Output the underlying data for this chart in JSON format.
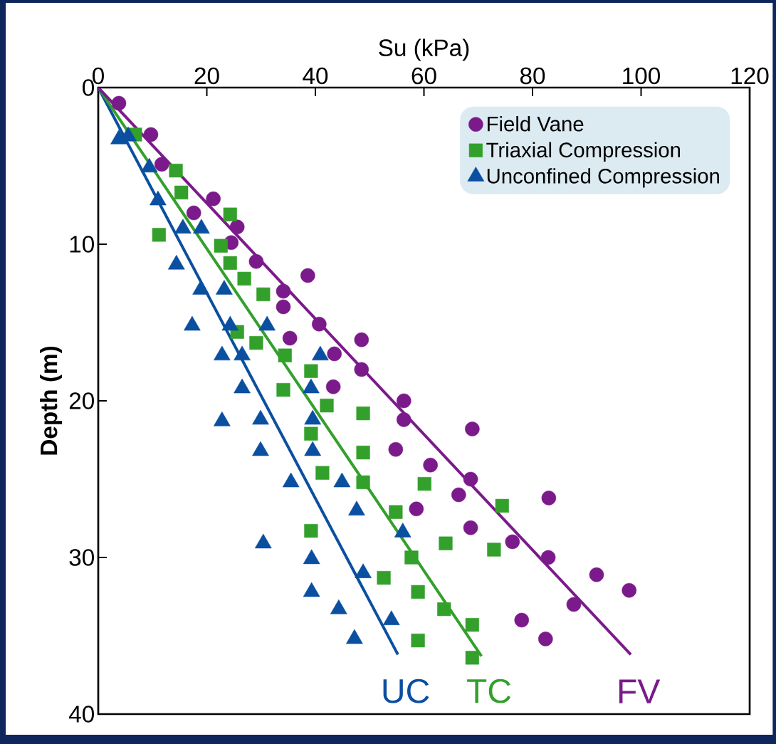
{
  "chart_data": {
    "type": "scatter",
    "xlabel": "Su (kPa)",
    "ylabel": "Depth (m)",
    "xlim": [
      0,
      120
    ],
    "ylim": [
      40,
      0
    ],
    "xticks": [
      0,
      20,
      40,
      60,
      80,
      100,
      120
    ],
    "yticks": [
      0,
      10,
      20,
      30,
      40
    ],
    "legend": "top right",
    "series": [
      {
        "name": "Field Vane",
        "color": "#7b1a8a",
        "marker": "circle",
        "x": [
          3.8,
          9.7,
          11.7,
          21.2,
          17.6,
          25.6,
          24.5,
          29.1,
          38.6,
          34.1,
          34.1,
          40.7,
          48.5,
          35.3,
          43.5,
          48.5,
          43.3,
          56.3,
          56.3,
          68.9,
          54.8,
          61.2,
          68.6,
          66.4,
          83.0,
          58.6,
          68.6,
          76.3,
          82.9,
          91.8,
          97.8,
          87.6,
          78.0,
          82.4
        ],
        "values": [
          1.0,
          3.0,
          4.9,
          7.1,
          8.0,
          8.9,
          9.9,
          11.1,
          12.0,
          13.0,
          14.0,
          15.1,
          16.1,
          16.0,
          17.0,
          18.0,
          19.1,
          20.0,
          21.2,
          21.8,
          23.1,
          24.1,
          25.0,
          26.0,
          26.2,
          26.9,
          28.1,
          29.0,
          30.0,
          31.1,
          32.1,
          33.0,
          34.0,
          35.2
        ]
      },
      {
        "name": "Triaxial Compression",
        "color": "#33a02c",
        "marker": "square",
        "x": [
          6.8,
          14.3,
          15.3,
          24.3,
          11.2,
          22.6,
          24.3,
          26.9,
          30.4,
          25.6,
          29.1,
          34.4,
          39.2,
          34.1,
          42.1,
          48.8,
          39.2,
          48.8,
          41.3,
          48.8,
          60.1,
          74.4,
          54.8,
          39.2,
          64.0,
          72.9,
          57.7,
          52.6,
          58.9,
          63.7,
          68.9,
          58.9,
          68.9
        ],
        "values": [
          3.0,
          5.3,
          6.7,
          8.1,
          9.4,
          10.1,
          11.2,
          12.2,
          13.2,
          15.6,
          16.3,
          17.1,
          18.1,
          19.3,
          20.3,
          20.8,
          22.1,
          23.3,
          24.6,
          25.2,
          25.3,
          26.7,
          27.1,
          28.3,
          29.1,
          29.5,
          30.0,
          31.3,
          32.2,
          33.3,
          34.3,
          35.3,
          36.4
        ]
      },
      {
        "name": "Unconfined Compression",
        "color": "#0b4fa0",
        "marker": "triangle",
        "x": [
          3.8,
          5.5,
          9.4,
          11.0,
          15.6,
          19.0,
          14.4,
          18.9,
          23.2,
          17.3,
          24.3,
          31.1,
          22.8,
          26.5,
          40.9,
          26.5,
          39.2,
          22.8,
          29.9,
          39.5,
          29.9,
          39.5,
          35.5,
          44.9,
          47.6,
          56.1,
          30.4,
          39.3,
          48.8,
          39.3,
          44.3,
          54.0,
          47.2
        ],
        "values": [
          3.3,
          3.1,
          5.1,
          7.2,
          9.0,
          9.0,
          11.3,
          12.9,
          12.9,
          15.2,
          15.2,
          15.2,
          17.1,
          17.1,
          17.1,
          19.2,
          19.2,
          21.3,
          21.2,
          21.2,
          23.2,
          23.2,
          25.2,
          25.2,
          27.0,
          28.4,
          29.1,
          30.1,
          31.0,
          32.2,
          33.3,
          34.0,
          35.2
        ]
      },
      {
        "type": "line",
        "color": "#0b4fa0",
        "x": [
          0,
          55.2
        ],
        "values": [
          0,
          36.2
        ]
      },
      {
        "type": "line",
        "color": "#33a02c",
        "x": [
          0,
          70.6
        ],
        "values": [
          0,
          36.3
        ]
      },
      {
        "type": "line",
        "color": "#7b1a8a",
        "x": [
          0,
          98.1
        ],
        "values": [
          0,
          36.2
        ]
      }
    ],
    "annotations": [
      "UC",
      "TC",
      "FV"
    ]
  }
}
